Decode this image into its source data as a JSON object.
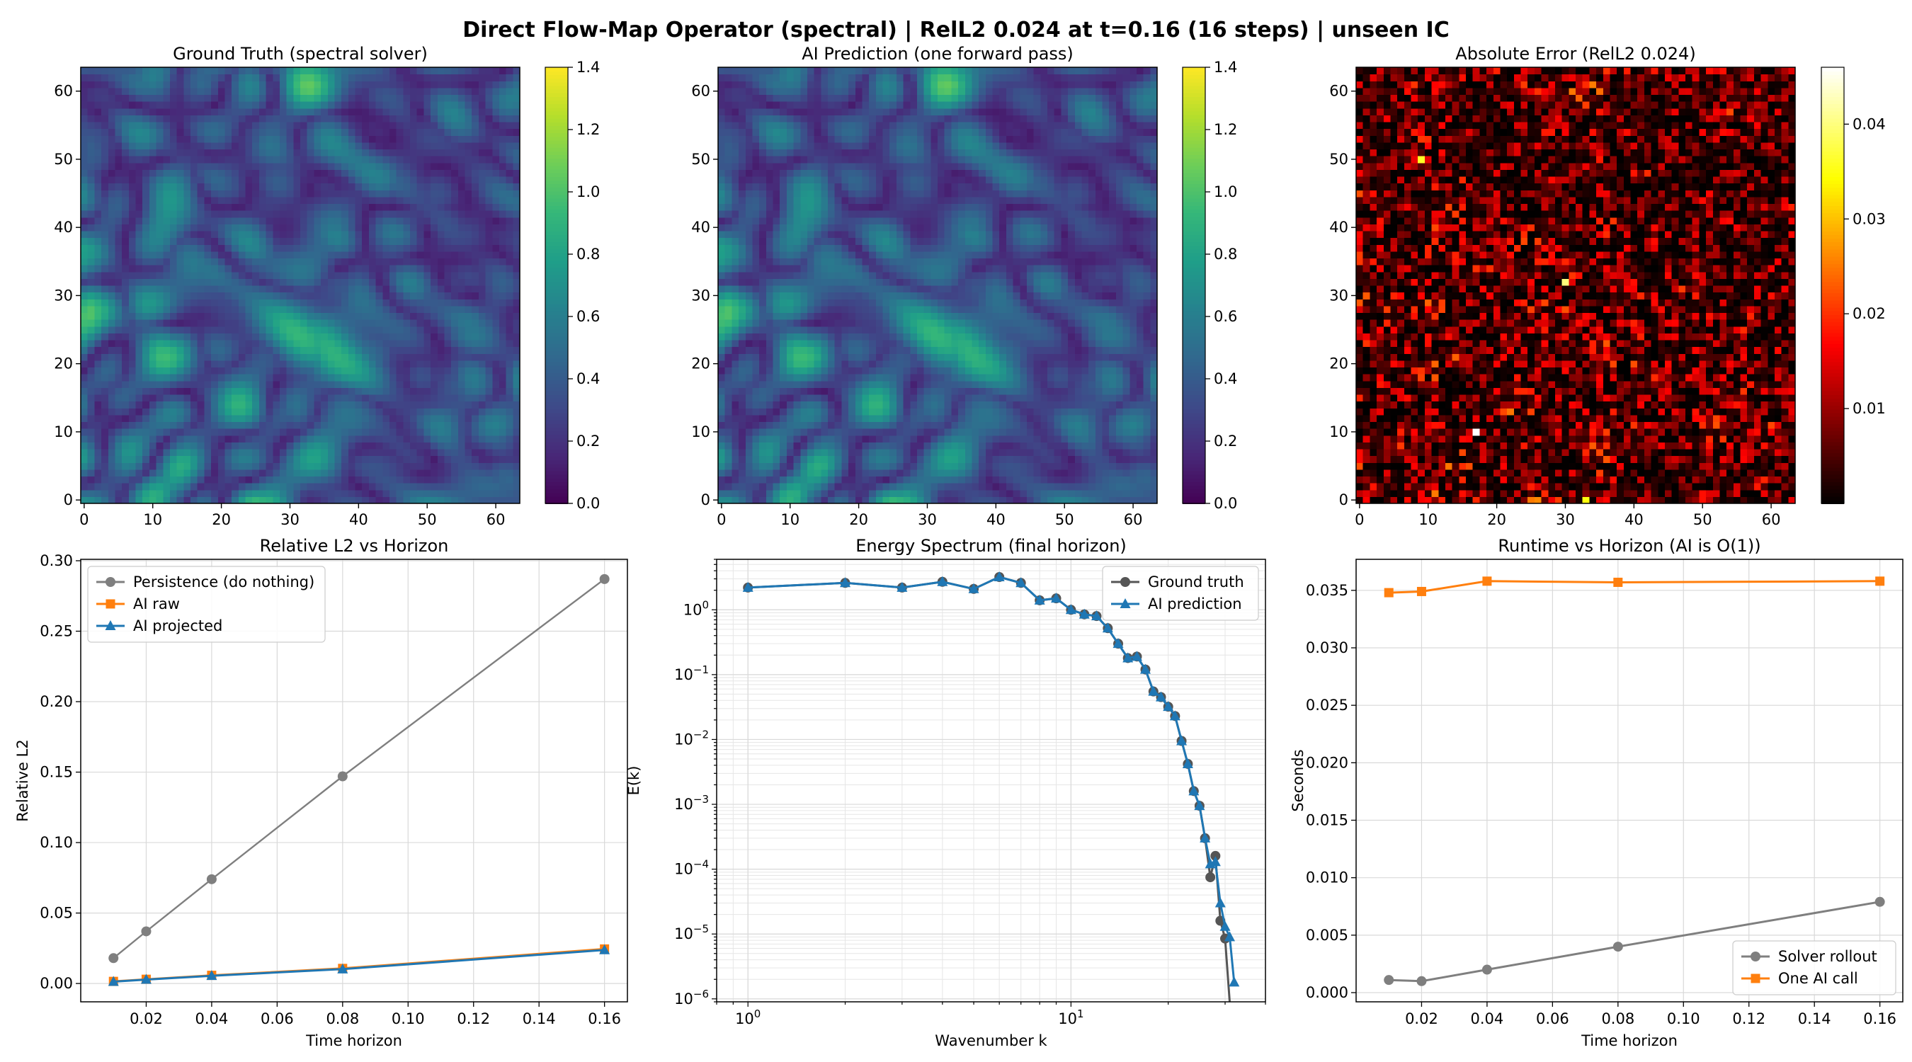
{
  "figure": {
    "suptitle": "Direct Flow-Map Operator (spectral) | RelL2 0.024 at t=0.16 (16 steps) | unseen IC"
  },
  "colors": {
    "persistence": "#7f7f7f",
    "ai_raw": "#ff7f0e",
    "ai_projected": "#1f77b4",
    "ground_truth_spec": "#555555",
    "ai_prediction_spec": "#1f77b4",
    "solver": "#7f7f7f",
    "ai_call": "#ff7f0e"
  },
  "chart_data": [
    {
      "type": "heatmap",
      "title": "Ground Truth (spectral solver)",
      "xlim": [
        0,
        63
      ],
      "ylim": [
        0,
        63
      ],
      "xticks": [
        "0",
        "10",
        "20",
        "30",
        "40",
        "50",
        "60"
      ],
      "yticks": [
        "0",
        "10",
        "20",
        "30",
        "40",
        "50",
        "60"
      ],
      "colormap": "viridis",
      "colorbar": {
        "range": [
          0.0,
          1.4
        ],
        "ticks": [
          "0.0",
          "0.2",
          "0.4",
          "0.6",
          "0.8",
          "1.0",
          "1.2",
          "1.4"
        ]
      },
      "grid_size": 64
    },
    {
      "type": "heatmap",
      "title": "AI Prediction (one forward pass)",
      "xlim": [
        0,
        63
      ],
      "ylim": [
        0,
        63
      ],
      "xticks": [
        "0",
        "10",
        "20",
        "30",
        "40",
        "50",
        "60"
      ],
      "yticks": [
        "0",
        "10",
        "20",
        "30",
        "40",
        "50",
        "60"
      ],
      "colormap": "viridis",
      "colorbar": {
        "range": [
          0.0,
          1.4
        ],
        "ticks": [
          "0.0",
          "0.2",
          "0.4",
          "0.6",
          "0.8",
          "1.0",
          "1.2",
          "1.4"
        ]
      },
      "grid_size": 64
    },
    {
      "type": "heatmap",
      "title": "Absolute Error (RelL2 0.024)",
      "xlim": [
        0,
        63
      ],
      "ylim": [
        0,
        63
      ],
      "xticks": [
        "0",
        "10",
        "20",
        "30",
        "40",
        "50",
        "60"
      ],
      "yticks": [
        "0",
        "10",
        "20",
        "30",
        "40",
        "50",
        "60"
      ],
      "colormap": "hot",
      "colorbar": {
        "range": [
          0.0,
          0.046
        ],
        "ticks": [
          "0.01",
          "0.02",
          "0.03",
          "0.04"
        ]
      },
      "grid_size": 64
    },
    {
      "type": "line",
      "title": "Relative L2 vs Horizon",
      "xlabel": "Time horizon",
      "ylabel": "Relative L2",
      "xlim": [
        0.0,
        0.167
      ],
      "ylim": [
        -0.013,
        0.301
      ],
      "xticks": [
        "0.02",
        "0.04",
        "0.06",
        "0.08",
        "0.10",
        "0.12",
        "0.14",
        "0.16"
      ],
      "yticks": [
        "0.00",
        "0.05",
        "0.10",
        "0.15",
        "0.20",
        "0.25",
        "0.30"
      ],
      "grid": true,
      "legend": "top-left",
      "x": [
        0.01,
        0.02,
        0.04,
        0.08,
        0.16
      ],
      "series": [
        {
          "name": "Persistence (do nothing)",
          "values": [
            0.018,
            0.037,
            0.074,
            0.147,
            0.287
          ],
          "marker": "circle"
        },
        {
          "name": "AI raw",
          "values": [
            0.0015,
            0.003,
            0.0058,
            0.0107,
            0.0245
          ],
          "marker": "square"
        },
        {
          "name": "AI projected",
          "values": [
            0.0013,
            0.0028,
            0.0055,
            0.0102,
            0.0238
          ],
          "marker": "triangle"
        }
      ]
    },
    {
      "type": "line",
      "title": "Energy Spectrum (final horizon)",
      "xlabel": "Wavenumber k",
      "ylabel": "E(k)",
      "xscale": "log",
      "yscale": "log",
      "xlim": [
        0.8,
        40
      ],
      "ylim": [
        9e-07,
        6
      ],
      "xticks": [
        "10^0",
        "10^1"
      ],
      "yticks": [
        "10^0",
        "10^-1",
        "10^-2",
        "10^-3",
        "10^-4",
        "10^-5",
        "10^-6"
      ],
      "grid": true,
      "legend": "top-right",
      "x": [
        1,
        2,
        3,
        4,
        5,
        6,
        7,
        8,
        9,
        10,
        11,
        12,
        13,
        14,
        15,
        16,
        17,
        18,
        19,
        20,
        21,
        22,
        23,
        24,
        25,
        26,
        27,
        28,
        29,
        30,
        31,
        32
      ],
      "series": [
        {
          "name": "Ground truth",
          "marker": "circle",
          "values": [
            2.2,
            2.6,
            2.2,
            2.7,
            2.1,
            3.2,
            2.6,
            1.4,
            1.5,
            1.0,
            0.85,
            0.8,
            0.52,
            0.3,
            0.18,
            0.19,
            0.12,
            0.055,
            0.045,
            0.032,
            0.023,
            0.0095,
            0.0042,
            0.0016,
            0.00095,
            0.0003,
            7.5e-05,
            0.00016,
            1.6e-05,
            8.5e-06,
            1e-07,
            null
          ]
        },
        {
          "name": "AI prediction",
          "marker": "triangle",
          "values": [
            2.2,
            2.6,
            2.2,
            2.7,
            2.1,
            3.2,
            2.6,
            1.4,
            1.5,
            1.0,
            0.85,
            0.8,
            0.52,
            0.3,
            0.18,
            0.19,
            0.12,
            0.055,
            0.045,
            0.032,
            0.023,
            0.0095,
            0.0042,
            0.0016,
            0.00095,
            0.0003,
            0.00012,
            0.00013,
            3e-05,
            1.3e-05,
            9e-06,
            1.8e-06
          ]
        }
      ]
    },
    {
      "type": "line",
      "title": "Runtime vs Horizon (AI is O(1))",
      "xlabel": "Time horizon",
      "ylabel": "Seconds",
      "xlim": [
        0.0,
        0.167
      ],
      "ylim": [
        -0.0008,
        0.0377
      ],
      "xticks": [
        "0.02",
        "0.04",
        "0.06",
        "0.08",
        "0.10",
        "0.12",
        "0.14",
        "0.16"
      ],
      "yticks": [
        "0.000",
        "0.005",
        "0.010",
        "0.015",
        "0.020",
        "0.025",
        "0.030",
        "0.035"
      ],
      "grid": true,
      "legend": "bottom-right",
      "x": [
        0.01,
        0.02,
        0.04,
        0.08,
        0.16
      ],
      "series": [
        {
          "name": "Solver rollout",
          "values": [
            0.0011,
            0.001,
            0.002,
            0.004,
            0.0079
          ],
          "marker": "circle"
        },
        {
          "name": "One AI call",
          "values": [
            0.0348,
            0.0349,
            0.0358,
            0.0357,
            0.0358
          ],
          "marker": "square"
        }
      ]
    }
  ]
}
